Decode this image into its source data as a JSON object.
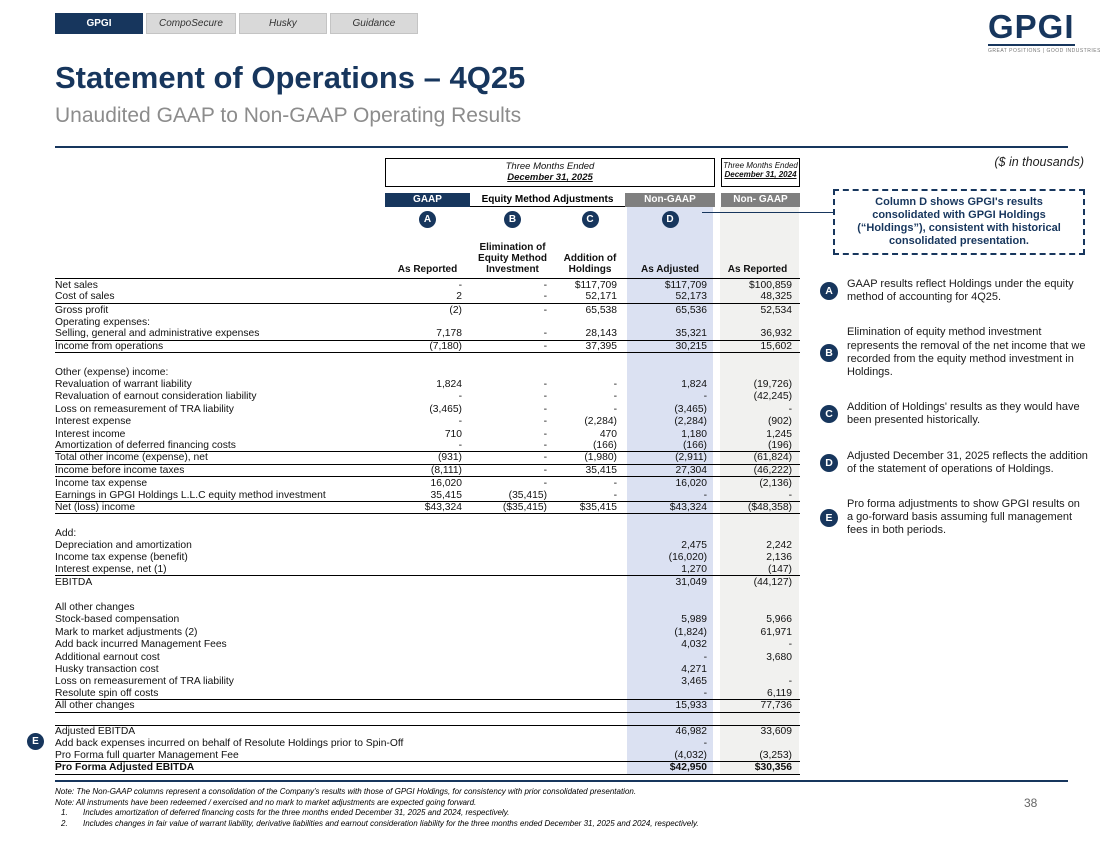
{
  "tabs": [
    {
      "label": "GPGI",
      "active": true
    },
    {
      "label": "CompoSecure",
      "active": false
    },
    {
      "label": "Husky",
      "active": false
    },
    {
      "label": "Guidance",
      "active": false
    }
  ],
  "logo": {
    "text": "GPGI",
    "tagline": "GREAT POSITIONS | GOOD INDUSTRIES"
  },
  "title": "Statement of Operations – 4Q25",
  "subtitle": "Unaudited GAAP to Non-GAAP Operating Results",
  "units_note": "($ in thousands)",
  "period_2025": {
    "line1": "Three Months Ended",
    "line2": "December 31, 2025"
  },
  "period_2024": {
    "line1": "Three Months Ended",
    "line2": "December 31, 2024"
  },
  "bands": {
    "gaap": "GAAP",
    "equity": "Equity Method Adjustments",
    "non_gaap": "Non-GAAP",
    "non_gaap_2024": "Non- GAAP"
  },
  "letters": [
    "A",
    "B",
    "C",
    "D"
  ],
  "col_headers": [
    "As Reported",
    "Elimination of\nEquity Method\nInvestment",
    "Addition of\nHoldings",
    "As Adjusted",
    "As Reported"
  ],
  "callout_box": "Column D shows GPGI's results consolidated with GPGI Holdings (“Holdings”), consistent with historical consolidated presentation.",
  "annotations": [
    {
      "letter": "A",
      "text": "GAAP results reflect Holdings under the equity method of accounting for 4Q25."
    },
    {
      "letter": "B",
      "text": "Elimination of equity method investment represents the removal of the net income that we recorded from the equity method investment in Holdings."
    },
    {
      "letter": "C",
      "text": "Addition of Holdings' results as they would have been presented historically."
    },
    {
      "letter": "D",
      "text": "Adjusted December 31, 2025 reflects the addition of the statement of operations of Holdings."
    },
    {
      "letter": "E",
      "text": "Pro forma adjustments to show GPGI results on a go-forward basis assuming full management fees in both periods."
    }
  ],
  "colors": {
    "navy": "#17365d",
    "band_gray": "#7f7f7f",
    "highlight_blue": "#dbe1f2",
    "highlight_gray": "#f1f1ef"
  },
  "table": {
    "rows": [
      {
        "label": "Net sales",
        "cells": [
          "-",
          "-",
          "$117,709",
          "$117,709",
          "$100,859"
        ]
      },
      {
        "label": "Cost of sales",
        "cells": [
          "2",
          "-",
          "52,171",
          "52,173",
          "48,325"
        ],
        "flags": "rb"
      },
      {
        "label": "Gross profit",
        "cells": [
          "(2)",
          "-",
          "65,538",
          "65,536",
          "52,534"
        ]
      },
      {
        "label": "Operating expenses:",
        "cells": [
          "",
          "",
          "",
          "",
          ""
        ]
      },
      {
        "label": "Selling, general and administrative expenses",
        "cells": [
          "7,178",
          "-",
          "28,143",
          "35,321",
          "36,932"
        ],
        "flags": "rb"
      },
      {
        "label": "Income from operations",
        "cells": [
          "(7,180)",
          "-",
          "37,395",
          "30,215",
          "15,602"
        ],
        "flags": "rb"
      },
      {
        "label": "",
        "cells": [
          "",
          "",
          "",
          "",
          ""
        ],
        "flags": "spacer"
      },
      {
        "label": "Other (expense) income:",
        "cells": [
          "",
          "",
          "",
          "",
          ""
        ]
      },
      {
        "label": "Revaluation of warrant liability",
        "cells": [
          "1,824",
          "-",
          "-",
          "1,824",
          "(19,726)"
        ]
      },
      {
        "label": "Revaluation of earnout consideration liability",
        "cells": [
          "-",
          "-",
          "-",
          "-",
          "(42,245)"
        ]
      },
      {
        "label": "Loss on remeasurement of TRA liability",
        "cells": [
          "(3,465)",
          "-",
          "-",
          "(3,465)",
          "-"
        ]
      },
      {
        "label": "Interest expense",
        "cells": [
          "-",
          "-",
          "(2,284)",
          "(2,284)",
          "(902)"
        ]
      },
      {
        "label": "Interest income",
        "cells": [
          "710",
          "-",
          "470",
          "1,180",
          "1,245"
        ]
      },
      {
        "label": "Amortization of deferred financing costs",
        "cells": [
          "-",
          "-",
          "(166)",
          "(166)",
          "(196)"
        ],
        "flags": "rb"
      },
      {
        "label": "Total other income (expense), net",
        "cells": [
          "(931)",
          "-",
          "(1,980)",
          "(2,911)",
          "(61,824)"
        ],
        "flags": "rb"
      },
      {
        "label": "Income before income taxes",
        "cells": [
          "(8,111)",
          "-",
          "35,415",
          "27,304",
          "(46,222)"
        ],
        "flags": "rb"
      },
      {
        "label": "Income tax expense",
        "cells": [
          "16,020",
          "-",
          "-",
          "16,020",
          "(2,136)"
        ]
      },
      {
        "label": "Earnings in GPGI Holdings L.L.C equity method investment",
        "cells": [
          "35,415",
          "(35,415)",
          "-",
          "-",
          "-"
        ],
        "flags": "rb"
      },
      {
        "label": "Net (loss) income",
        "cells": [
          "$43,324",
          "($35,415)",
          "$35,415",
          "$43,324",
          "($48,358)"
        ],
        "flags": "rb"
      },
      {
        "label": "",
        "cells": [
          "",
          "",
          "",
          "",
          ""
        ],
        "flags": "spacer"
      },
      {
        "label": "Add:",
        "cells": [
          "",
          "",
          "",
          "",
          ""
        ]
      },
      {
        "label": "Depreciation and amortization",
        "cells": [
          "",
          "",
          "",
          "2,475",
          "2,242"
        ]
      },
      {
        "label": "Income tax expense (benefit)",
        "cells": [
          "",
          "",
          "",
          "(16,020)",
          "2,136"
        ]
      },
      {
        "label": "Interest expense, net (1)",
        "cells": [
          "",
          "",
          "",
          "1,270",
          "(147)"
        ],
        "flags": "rb"
      },
      {
        "label": "EBITDA",
        "cells": [
          "",
          "",
          "",
          "31,049",
          "(44,127)"
        ]
      },
      {
        "label": "",
        "cells": [
          "",
          "",
          "",
          "",
          ""
        ],
        "flags": "spacer"
      },
      {
        "label": "All other changes",
        "cells": [
          "",
          "",
          "",
          "",
          ""
        ]
      },
      {
        "label": "Stock-based compensation",
        "cells": [
          "",
          "",
          "",
          "5,989",
          "5,966"
        ]
      },
      {
        "label": "Mark to market adjustments (2)",
        "cells": [
          "",
          "",
          "",
          "(1,824)",
          "61,971"
        ]
      },
      {
        "label": "Add back incurred Management Fees",
        "cells": [
          "",
          "",
          "",
          "4,032",
          "-"
        ]
      },
      {
        "label": "Additional earnout cost",
        "cells": [
          "",
          "",
          "",
          "-",
          "3,680"
        ]
      },
      {
        "label": "Husky transaction cost",
        "cells": [
          "",
          "",
          "",
          "4,271",
          ""
        ]
      },
      {
        "label": "Loss on remeasurement of TRA liability",
        "cells": [
          "",
          "",
          "",
          "3,465",
          "-"
        ]
      },
      {
        "label": "Resolute spin off costs",
        "cells": [
          "",
          "",
          "",
          "-",
          "6,119"
        ],
        "flags": "rb"
      },
      {
        "label": "All other changes",
        "cells": [
          "",
          "",
          "",
          "15,933",
          "77,736"
        ],
        "flags": "rb"
      },
      {
        "label": "",
        "cells": [
          "",
          "",
          "",
          "",
          ""
        ],
        "flags": "spacer"
      },
      {
        "label": "Adjusted EBITDA",
        "cells": [
          "",
          "",
          "",
          "46,982",
          "33,609"
        ],
        "flags": "rt"
      },
      {
        "label": "Add back expenses incurred on behalf of Resolute Holdings prior to Spin-Off",
        "cells": [
          "",
          "",
          "",
          "-",
          ""
        ],
        "badge": "E"
      },
      {
        "label": "Pro Forma full quarter Management Fee",
        "cells": [
          "",
          "",
          "",
          "(4,032)",
          "(3,253)"
        ],
        "flags": "rb"
      },
      {
        "label": "Pro Forma Adjusted EBITDA",
        "cells": [
          "",
          "",
          "",
          "$42,950",
          "$30,356"
        ],
        "flags": "bold rbb"
      }
    ]
  },
  "footnotes": [
    {
      "num": "",
      "text": "Note: The Non-GAAP columns represent a consolidation of the Company's results with those of GPGI Holdings, for consistency with prior consolidated presentation."
    },
    {
      "num": "",
      "text": "Note: All instruments have been redeemed / exercised and no mark to market adjustments are expected going forward."
    },
    {
      "num": "1.",
      "text": "Includes amortization of deferred financing costs for the three months ended December 31, 2025 and 2024, respectively."
    },
    {
      "num": "2.",
      "text": "Includes changes in fair value of warrant liability, derivative liabilities and earnout consideration liability for the three months ended December 31, 2025 and 2024, respectively."
    }
  ],
  "page_number": "38"
}
